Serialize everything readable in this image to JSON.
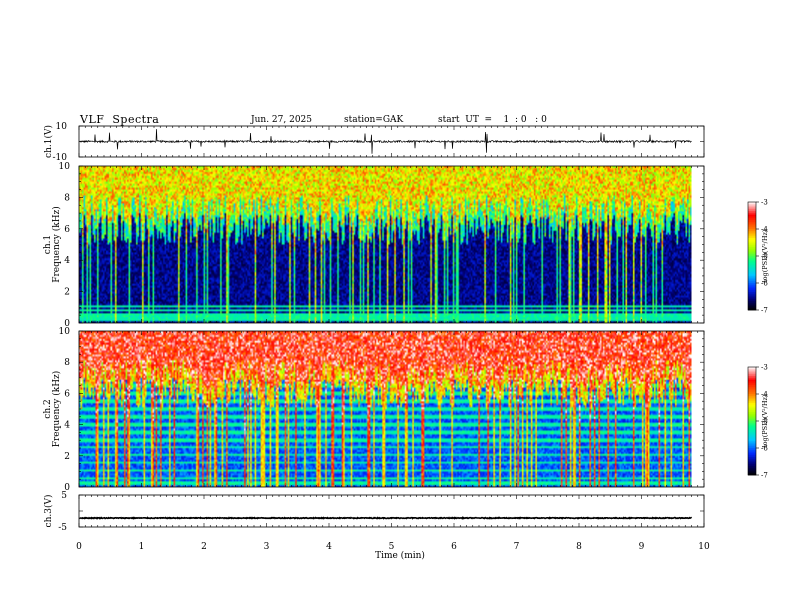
{
  "header": {
    "title": "VLF  Spectra",
    "date": "Jun. 27, 2025",
    "station": "station=GAK",
    "start": "start  UT  =    1  : 0   : 0"
  },
  "chart_data": [
    {
      "type": "line",
      "name": "ch1-waveform",
      "ylabel": "ch.1(V)",
      "ylim": [
        -10,
        10
      ],
      "yticks": [
        "10",
        "-10"
      ],
      "xlim": [
        0,
        10
      ],
      "baseline": 0,
      "noise_amplitude_v": 1.2,
      "spike_amplitude_v": 8,
      "data_end_min": 9.8
    },
    {
      "type": "heatmap",
      "name": "ch1-spectrogram",
      "ylabel": "ch.1\nFrequency  (kHz)",
      "ylim": [
        0,
        10
      ],
      "yticks": [
        "0",
        "2",
        "4",
        "6",
        "8",
        "10"
      ],
      "xlim": [
        0,
        10
      ],
      "data_end_min": 9.8,
      "colorbar": {
        "label": "log(PSD)(V²/Hz)",
        "range": [
          -7,
          -3
        ],
        "ticks": [
          "-3",
          "-4",
          "-5",
          "-6",
          "-7"
        ]
      },
      "interference_lines_khz": [
        0.2,
        0.45,
        0.75,
        1.0
      ],
      "background_level": -6.8,
      "top_band_level": -4.5
    },
    {
      "type": "heatmap",
      "name": "ch2-spectrogram",
      "ylabel": "ch.2\nFrequency  (kHz)",
      "ylim": [
        0,
        10
      ],
      "yticks": [
        "0",
        "2",
        "4",
        "6",
        "8",
        "10"
      ],
      "xlim": [
        0,
        10
      ],
      "data_end_min": 9.8,
      "colorbar": {
        "label": "log(PSD)(V²/Hz)",
        "range": [
          -7,
          -3
        ],
        "ticks": [
          "-3",
          "-4",
          "-5",
          "-6",
          "-7"
        ]
      },
      "interference_lines_khz": [
        0.2,
        0.5,
        1.0,
        1.5,
        2.0,
        2.5,
        3.0,
        3.5,
        4.0,
        4.5,
        5.0,
        5.5,
        6.0,
        6.5,
        7.3
      ],
      "background_level": -6.3,
      "top_band_level": -3.6
    },
    {
      "type": "line",
      "name": "ch3-waveform",
      "ylabel": "ch.3(V)",
      "ylim": [
        -5,
        5
      ],
      "yticks": [
        "5",
        "-5"
      ],
      "xlim": [
        0,
        10
      ],
      "baseline": -2.2,
      "noise_amplitude_v": 0.25,
      "data_end_min": 9.8
    }
  ],
  "xaxis": {
    "label": "Time  (min)",
    "ticks": [
      "0",
      "1",
      "2",
      "3",
      "4",
      "5",
      "6",
      "7",
      "8",
      "9",
      "10"
    ]
  },
  "colors": {
    "scale": [
      "#000000",
      "#000080",
      "#0020ff",
      "#00c0ff",
      "#00ff80",
      "#a0ff00",
      "#ffff00",
      "#ff8000",
      "#ff0000",
      "#ffffff"
    ]
  }
}
